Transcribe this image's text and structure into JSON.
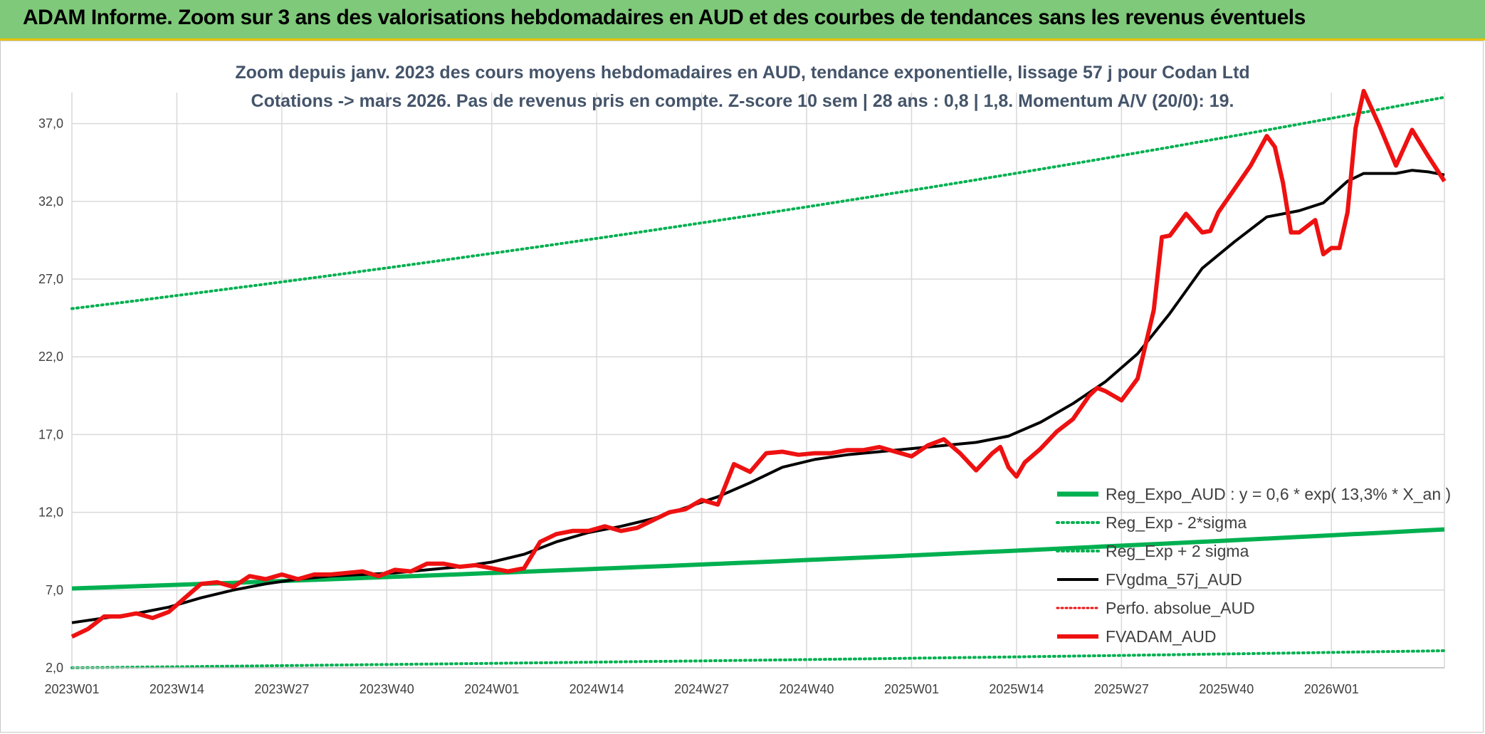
{
  "banner": {
    "title": "ADAM Informe. Zoom sur 3 ans des valorisations hebdomadaires en AUD et des courbes de tendances sans les revenus éventuels"
  },
  "colors": {
    "banner_bg": "#7fc97a",
    "banner_border": "#e8c200",
    "trend_green": "#00b050",
    "black_line": "#000000",
    "red_line": "#ee1111"
  },
  "chart_data": {
    "type": "line",
    "title_line1": "Zoom depuis janv. 2023 des cours moyens hebdomadaires en AUD, tendance exponentielle, lissage 57 j pour Codan Ltd",
    "title_line2": "Cotations -> mars 2026. Pas de revenus pris en compte. Z-score 10 sem | 28 ans : 0,8 | 1,8. Momentum A/V (20/0): 19.",
    "ylim": [
      2,
      39
    ],
    "yticks": [
      "2,0",
      "7,0",
      "12,0",
      "17,0",
      "22,0",
      "27,0",
      "32,0",
      "37,0"
    ],
    "ytick_values": [
      2,
      7,
      12,
      17,
      22,
      27,
      32,
      37
    ],
    "xticks": [
      "2023W01",
      "2023W14",
      "2023W27",
      "2023W40",
      "2024W01",
      "2024W14",
      "2024W27",
      "2024W40",
      "2025W01",
      "2025W14",
      "2025W27",
      "2025W40",
      "2026W01"
    ],
    "xtick_positions_weeks": [
      0,
      13,
      26,
      39,
      52,
      65,
      78,
      91,
      104,
      117,
      130,
      143,
      156
    ],
    "x_range_weeks": [
      0,
      170
    ],
    "grid": true,
    "legend_position": "bottom-right",
    "legend": [
      "Reg_Expo_AUD : y = 0,6 * exp( 13,3% *  X_an )",
      "Reg_Exp - 2*sigma",
      "Reg_Exp + 2 sigma",
      "FVgdma_57j_AUD",
      "Perfo. absolue_AUD",
      "FVADAM_AUD"
    ],
    "series": [
      {
        "name": "Reg_Expo_AUD : y = 0,6 * exp( 13,3% *  X_an )",
        "style": "solid-thick",
        "color": "#00b050",
        "x": [
          0,
          170
        ],
        "y": [
          7.1,
          10.9
        ]
      },
      {
        "name": "Reg_Exp - 2*sigma",
        "style": "dotted",
        "color": "#00b050",
        "x": [
          0,
          170
        ],
        "y": [
          2.0,
          3.1
        ]
      },
      {
        "name": "Reg_Exp + 2 sigma",
        "style": "dotted",
        "color": "#00b050",
        "x": [
          0,
          170
        ],
        "y": [
          25.1,
          38.7
        ]
      },
      {
        "name": "FVgdma_57j_AUD",
        "style": "solid",
        "color": "#000000",
        "x": [
          0,
          4,
          8,
          12,
          16,
          20,
          24,
          28,
          32,
          36,
          40,
          44,
          48,
          52,
          56,
          60,
          64,
          68,
          72,
          76,
          80,
          84,
          88,
          92,
          96,
          100,
          104,
          108,
          112,
          116,
          120,
          124,
          128,
          132,
          136,
          140,
          144,
          148,
          152,
          155,
          158,
          160,
          162,
          164,
          166,
          168,
          170
        ],
        "y": [
          4.9,
          5.2,
          5.5,
          5.9,
          6.5,
          7.0,
          7.4,
          7.7,
          7.9,
          8.0,
          8.1,
          8.3,
          8.5,
          8.8,
          9.3,
          10.1,
          10.7,
          11.1,
          11.6,
          12.3,
          13.0,
          13.9,
          14.9,
          15.4,
          15.7,
          15.9,
          16.1,
          16.3,
          16.5,
          16.9,
          17.8,
          19.0,
          20.4,
          22.2,
          24.8,
          27.7,
          29.4,
          31.0,
          31.4,
          31.9,
          33.3,
          33.8,
          33.8,
          33.8,
          34.0,
          33.9,
          33.7
        ]
      },
      {
        "name": "FVADAM_AUD",
        "style": "solid-thick",
        "color": "#ee1111",
        "x": [
          0,
          2,
          4,
          6,
          8,
          10,
          12,
          14,
          16,
          18,
          20,
          22,
          24,
          26,
          28,
          30,
          32,
          34,
          36,
          38,
          40,
          42,
          44,
          46,
          48,
          50,
          52,
          54,
          56,
          58,
          60,
          62,
          64,
          66,
          68,
          70,
          72,
          74,
          76,
          78,
          80,
          82,
          84,
          86,
          88,
          90,
          92,
          94,
          96,
          98,
          100,
          102,
          104,
          106,
          108,
          110,
          112,
          114,
          115,
          116,
          117,
          118,
          120,
          122,
          124,
          126,
          127,
          128,
          130,
          132,
          134,
          135,
          136,
          138,
          140,
          141,
          142,
          144,
          146,
          148,
          149,
          150,
          151,
          152,
          154,
          155,
          156,
          157,
          158,
          159,
          160,
          162,
          164,
          166,
          168,
          170
        ],
        "y": [
          4.0,
          4.5,
          5.3,
          5.3,
          5.5,
          5.2,
          5.6,
          6.5,
          7.4,
          7.5,
          7.2,
          7.9,
          7.7,
          8.0,
          7.7,
          8.0,
          8.0,
          8.1,
          8.2,
          7.9,
          8.3,
          8.2,
          8.7,
          8.7,
          8.5,
          8.6,
          8.4,
          8.2,
          8.4,
          10.1,
          10.6,
          10.8,
          10.8,
          11.1,
          10.8,
          11.0,
          11.5,
          12.0,
          12.2,
          12.8,
          12.5,
          15.1,
          14.6,
          15.8,
          15.9,
          15.7,
          15.8,
          15.8,
          16.0,
          16.0,
          16.2,
          15.9,
          15.6,
          16.3,
          16.7,
          15.8,
          14.7,
          15.8,
          16.2,
          14.9,
          14.3,
          15.2,
          16.1,
          17.2,
          18.0,
          19.5,
          20.0,
          19.8,
          19.2,
          20.6,
          25.0,
          29.7,
          29.8,
          31.2,
          30.0,
          30.1,
          31.3,
          32.8,
          34.3,
          36.2,
          35.5,
          33.2,
          30.0,
          30.0,
          30.8,
          28.6,
          29.0,
          29.0,
          31.3,
          36.7,
          39.1,
          36.8,
          34.3,
          36.6,
          34.9,
          33.3
        ]
      }
    ]
  }
}
